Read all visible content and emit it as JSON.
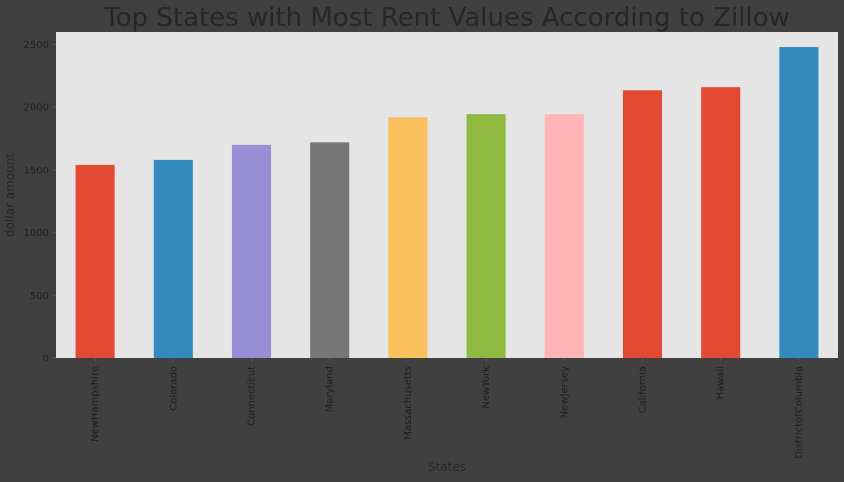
{
  "chart_data": {
    "type": "bar",
    "title": "Top States with Most Rent Values According to Zillow",
    "xlabel": "States",
    "ylabel": "dollar amount",
    "categories": [
      "NewHampshire",
      "Colorado",
      "Connecticut",
      "Maryland",
      "Massachusetts",
      "NewYork",
      "NewJersey",
      "California",
      "Hawaii",
      "DistrictofColumbia"
    ],
    "values": [
      1540,
      1580,
      1700,
      1720,
      1920,
      1945,
      1945,
      2135,
      2160,
      2480
    ],
    "bar_colors": [
      "#E24A33",
      "#348ABD",
      "#988ED5",
      "#777777",
      "#FBC15E",
      "#8EBA42",
      "#FFB5B8",
      "#E24A33",
      "#E24A33",
      "#348ABD"
    ],
    "yticks": [
      0,
      500,
      1000,
      1500,
      2000,
      2500
    ],
    "ylim": [
      0,
      2600
    ],
    "grid": false,
    "plot_background": "#E5E5E5",
    "figure_background": "#404040"
  }
}
